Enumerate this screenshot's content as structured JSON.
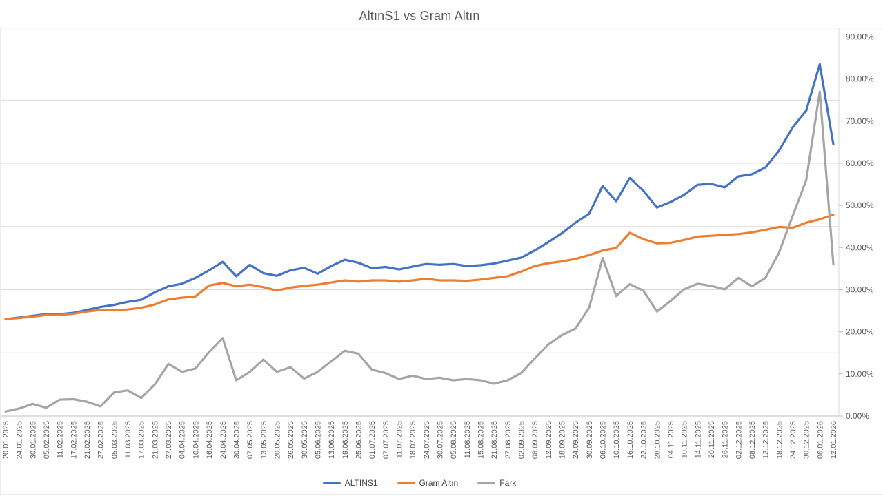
{
  "title": "AltınS1 vs Gram Altın",
  "chart_data": {
    "type": "line",
    "title": "AltınS1 vs Gram Altın",
    "xlabel": "",
    "ylabel": "",
    "ylim": [
      0,
      90
    ],
    "grid": true,
    "gridline_values": [
      15,
      30,
      45,
      60,
      75,
      90
    ],
    "legend_position": "bottom",
    "axis_side": "right",
    "y_ticks": [
      {
        "value": 90,
        "label": "90.00%"
      },
      {
        "value": 80,
        "label": "80.00%"
      },
      {
        "value": 70,
        "label": "70.00%"
      },
      {
        "value": 60,
        "label": "60.00%"
      },
      {
        "value": 50,
        "label": "50.00%"
      },
      {
        "value": 40,
        "label": "40.00%"
      },
      {
        "value": 30,
        "label": "30.00%"
      },
      {
        "value": 20,
        "label": "20.00%"
      },
      {
        "value": 10,
        "label": "10.00%"
      },
      {
        "value": 0,
        "label": "0.00%"
      }
    ],
    "x": [
      "20.01.2025",
      "24.01.2025",
      "30.01.2025",
      "05.02.2025",
      "11.02.2025",
      "17.02.2025",
      "21.02.2025",
      "27.02.2025",
      "05.03.2025",
      "11.03.2025",
      "17.03.2025",
      "21.03.2025",
      "27.03.2025",
      "04.04.2025",
      "10.04.2025",
      "16.04.2025",
      "24.04.2025",
      "30.04.2025",
      "07.05.2025",
      "13.05.2025",
      "20.05.2025",
      "26.05.2025",
      "30.05.2025",
      "05.06.2025",
      "13.06.2025",
      "19.06.2025",
      "25.06.2025",
      "01.07.2025",
      "07.07.2025",
      "11.07.2025",
      "18.07.2025",
      "24.07.2025",
      "30.07.2025",
      "05.08.2025",
      "11.08.2025",
      "15.08.2025",
      "21.08.2025",
      "27.08.2025",
      "02.09.2025",
      "08.09.2025",
      "12.09.2025",
      "18.09.2025",
      "24.09.2025",
      "30.09.2025",
      "06.10.2025",
      "10.10.2025",
      "16.10.2025",
      "22.10.2025",
      "28.10.2025",
      "04.11.2025",
      "10.11.2025",
      "14.11.2025",
      "20.11.2025",
      "26.11.2025",
      "02.12.2025",
      "08.12.2025",
      "12.12.2025",
      "18.12.2025",
      "24.12.2025",
      "30.12.2025",
      "06.01.2026",
      "12.01.2026"
    ],
    "series": [
      {
        "name": "ALTINS1",
        "color": "#4472C4",
        "values": [
          23.0,
          23.4,
          23.8,
          24.2,
          24.2,
          24.5,
          25.2,
          25.9,
          26.4,
          27.1,
          27.6,
          29.4,
          30.8,
          31.4,
          32.8,
          34.6,
          36.6,
          33.2,
          35.9,
          33.9,
          33.3,
          34.6,
          35.2,
          33.8,
          35.6,
          37.1,
          36.4,
          35.1,
          35.4,
          34.8,
          35.5,
          36.1,
          35.9,
          36.1,
          35.6,
          35.8,
          36.2,
          36.9,
          37.6,
          39.3,
          41.3,
          43.4,
          45.9,
          48.0,
          54.6,
          51.0,
          56.5,
          53.5,
          49.5,
          50.8,
          52.5,
          54.9,
          55.1,
          54.3,
          56.9,
          57.4,
          59.0,
          63.0,
          68.5,
          72.5,
          83.5,
          64.5
        ]
      },
      {
        "name": "Gram Altın",
        "color": "#ED7D31",
        "values": [
          23.0,
          23.3,
          23.6,
          24.0,
          24.0,
          24.3,
          24.8,
          25.2,
          25.1,
          25.3,
          25.7,
          26.5,
          27.7,
          28.1,
          28.4,
          31.0,
          31.6,
          30.8,
          31.2,
          30.6,
          29.8,
          30.5,
          30.9,
          31.2,
          31.7,
          32.2,
          31.9,
          32.2,
          32.2,
          31.9,
          32.2,
          32.6,
          32.2,
          32.2,
          32.1,
          32.4,
          32.8,
          33.2,
          34.3,
          35.6,
          36.3,
          36.7,
          37.3,
          38.2,
          39.3,
          39.9,
          43.5,
          42.0,
          41.0,
          41.1,
          41.8,
          42.6,
          42.8,
          43.0,
          43.2,
          43.6,
          44.2,
          44.9,
          44.7,
          45.9,
          46.7,
          47.8
        ]
      },
      {
        "name": "Fark",
        "color": "#A5A5A5",
        "values": [
          1.1,
          1.8,
          2.9,
          2.0,
          3.9,
          4.0,
          3.4,
          2.3,
          5.6,
          6.1,
          4.3,
          7.5,
          12.4,
          10.5,
          11.3,
          15.2,
          18.5,
          8.5,
          10.5,
          13.4,
          10.5,
          11.6,
          8.9,
          10.5,
          13.0,
          15.5,
          14.8,
          11.0,
          10.2,
          8.8,
          9.6,
          8.8,
          9.1,
          8.5,
          8.8,
          8.5,
          7.7,
          8.5,
          10.2,
          13.7,
          17.0,
          19.2,
          20.8,
          25.7,
          37.5,
          28.5,
          31.3,
          29.8,
          24.8,
          27.3,
          30.1,
          31.4,
          30.9,
          30.1,
          32.8,
          30.8,
          32.8,
          38.8,
          47.5,
          56.0,
          77.0,
          36.0
        ]
      }
    ]
  }
}
